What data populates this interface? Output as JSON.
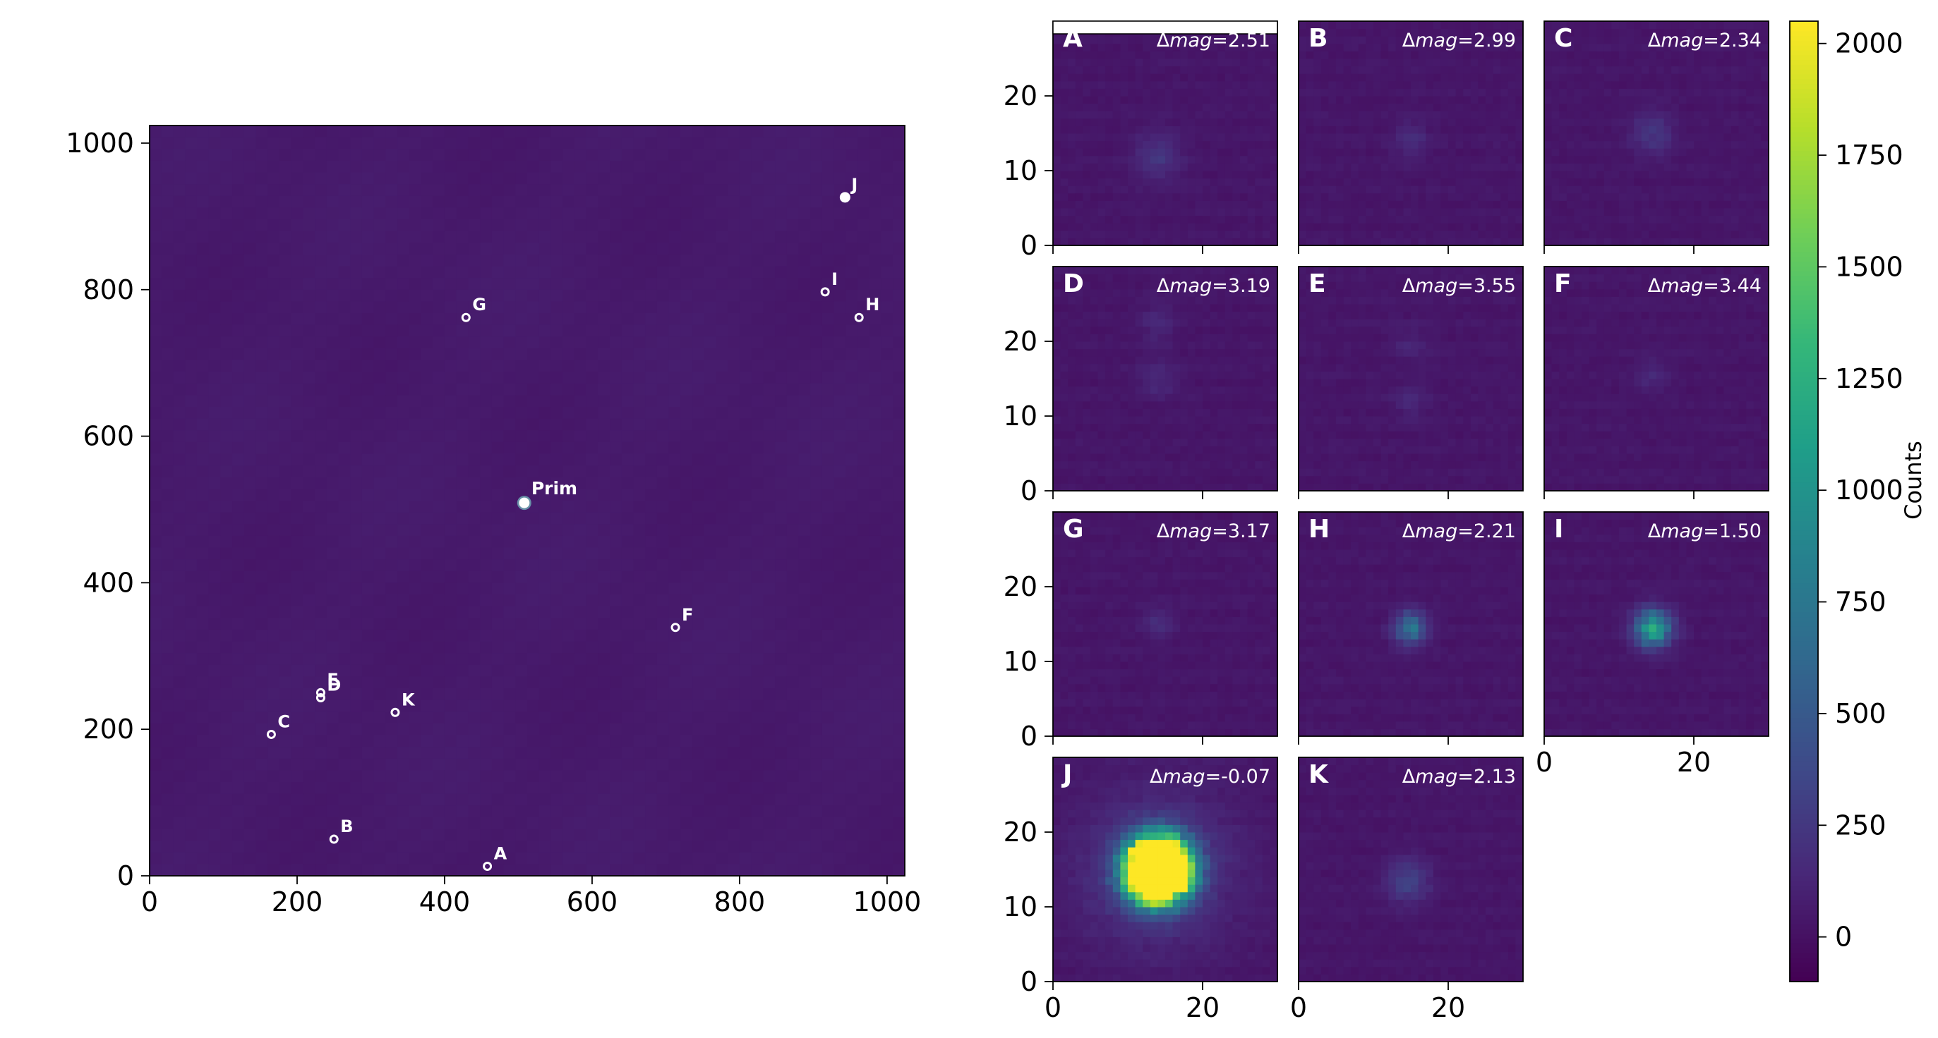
{
  "chart_data": [
    {
      "type": "image",
      "colormap": "viridis",
      "xlim": [
        0,
        1024
      ],
      "ylim": [
        0,
        1024
      ],
      "xticks": [
        0,
        200,
        400,
        600,
        800,
        1000
      ],
      "yticks": [
        0,
        200,
        400,
        600,
        800,
        1000
      ],
      "sources": [
        {
          "label": "Prim",
          "x": 508,
          "y": 509
        },
        {
          "label": "A",
          "x": 458,
          "y": 13
        },
        {
          "label": "B",
          "x": 250,
          "y": 50
        },
        {
          "label": "C",
          "x": 165,
          "y": 193
        },
        {
          "label": "D",
          "x": 232,
          "y": 243
        },
        {
          "label": "E",
          "x": 232,
          "y": 250
        },
        {
          "label": "F",
          "x": 713,
          "y": 339
        },
        {
          "label": "G",
          "x": 429,
          "y": 762
        },
        {
          "label": "H",
          "x": 962,
          "y": 762
        },
        {
          "label": "I",
          "x": 916,
          "y": 797
        },
        {
          "label": "J",
          "x": 943,
          "y": 926
        },
        {
          "label": "K",
          "x": 333,
          "y": 223
        }
      ]
    },
    {
      "type": "image",
      "colormap": "viridis",
      "xlim": [
        0,
        30
      ],
      "ylim": [
        0,
        30
      ],
      "xticks": [
        0,
        20
      ],
      "yticks": [
        0,
        10,
        20
      ],
      "cutouts": [
        {
          "label": "A",
          "dmag": "2.51",
          "peak": 190,
          "cx": 14,
          "cy": 12,
          "sig": 2.2,
          "double": false
        },
        {
          "label": "B",
          "dmag": "2.99",
          "peak": 150,
          "cx": 15,
          "cy": 14,
          "sig": 1.6,
          "double": false
        },
        {
          "label": "C",
          "dmag": "2.34",
          "peak": 200,
          "cx": 14.5,
          "cy": 15,
          "sig": 2.0,
          "double": false
        },
        {
          "label": "D",
          "dmag": "3.19",
          "peak": 120,
          "cx": 14,
          "cy": 15,
          "sig": 1.7,
          "double": true
        },
        {
          "label": "E",
          "dmag": "3.55",
          "peak": 100,
          "cx": 15,
          "cy": 12,
          "sig": 1.6,
          "double": true
        },
        {
          "label": "F",
          "dmag": "3.44",
          "peak": 110,
          "cx": 14.5,
          "cy": 15.5,
          "sig": 1.5,
          "double": false
        },
        {
          "label": "G",
          "dmag": "3.17",
          "peak": 130,
          "cx": 14,
          "cy": 15,
          "sig": 1.5,
          "double": false
        },
        {
          "label": "H",
          "dmag": "2.21",
          "peak": 700,
          "cx": 15,
          "cy": 14.5,
          "sig": 1.5,
          "double": false
        },
        {
          "label": "I",
          "dmag": "1.50",
          "peak": 1100,
          "cx": 14.5,
          "cy": 14.5,
          "sig": 1.7,
          "double": false
        },
        {
          "label": "J",
          "dmag": "-0.07",
          "peak": 6000,
          "cx": 14,
          "cy": 15,
          "sig": 2.6,
          "double": false
        },
        {
          "label": "K",
          "dmag": "2.13",
          "peak": 300,
          "cx": 14.5,
          "cy": 13.5,
          "sig": 2.0,
          "double": false
        }
      ]
    },
    {
      "type": "colorbar",
      "label": "Counts",
      "range": [
        -100,
        2050
      ],
      "ticks": [
        0,
        250,
        500,
        750,
        1000,
        1250,
        1500,
        1750,
        2000
      ]
    }
  ]
}
